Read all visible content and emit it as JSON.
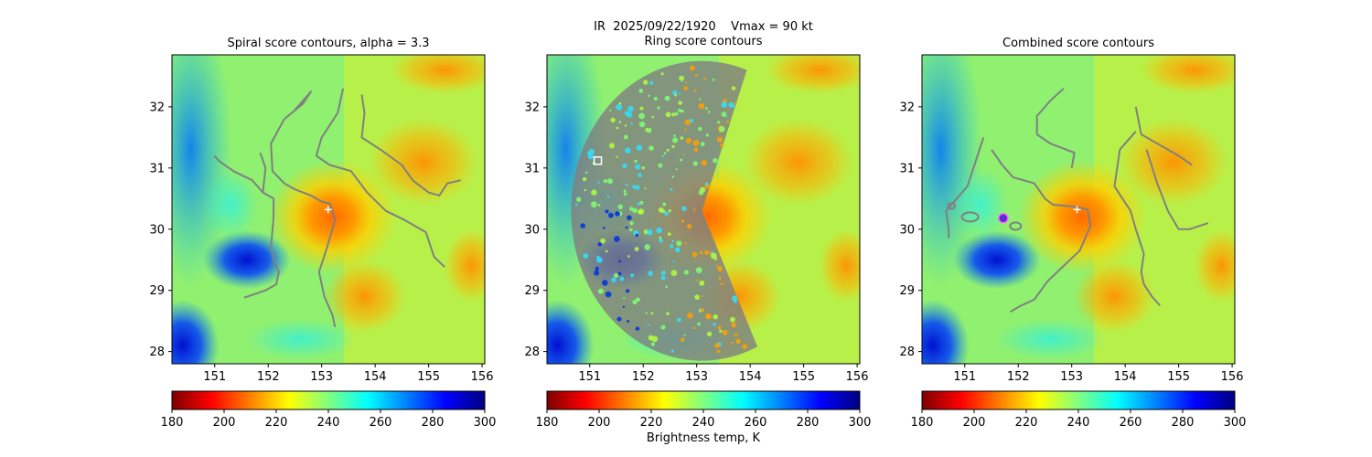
{
  "figure": {
    "suptitle_line1": "IR  2025/09/22/1920    Vmax = 90 kt",
    "suptitle_line2": "Ring score contours",
    "colorbar_label": "Brightness temp, K"
  },
  "colors": {
    "contour": "#808080",
    "marker_center": "#ffffff",
    "marker_combined": "#5a2bd6",
    "colormap_stops": [
      "#7f0000",
      "#ff0000",
      "#ff8000",
      "#ffff00",
      "#80ff80",
      "#00ffff",
      "#0080ff",
      "#0000ff",
      "#00007f"
    ]
  },
  "chart_data": [
    {
      "type": "heatmap",
      "title": "Spiral score contours, alpha =  3.3",
      "xlabel": "",
      "ylabel": "",
      "xlim": [
        150.2,
        156.05
      ],
      "ylim": [
        27.8,
        32.85
      ],
      "xticks": [
        151,
        152,
        153,
        154,
        155,
        156
      ],
      "yticks": [
        28,
        29,
        30,
        31,
        32
      ],
      "colorbar": {
        "range": [
          180,
          300
        ],
        "ticks": [
          180,
          200,
          220,
          240,
          260,
          280,
          300
        ],
        "colormap": "reversed-jet",
        "label": ""
      },
      "center_marker": {
        "lon": 153.12,
        "lat": 30.32,
        "symbol": "+"
      },
      "contours": [
        [
          [
            150.99,
            31.2
          ],
          [
            151.1,
            31.1
          ],
          [
            151.35,
            30.95
          ],
          [
            151.7,
            30.8
          ],
          [
            151.9,
            30.6
          ],
          [
            152.1,
            30.5
          ],
          [
            152.1,
            30.2
          ],
          [
            152.05,
            29.7
          ],
          [
            152.1,
            29.5
          ],
          [
            152.2,
            29.3
          ],
          [
            152.15,
            29.1
          ],
          [
            151.95,
            29.0
          ],
          [
            151.55,
            28.88
          ]
        ],
        [
          [
            151.85,
            31.25
          ],
          [
            151.95,
            31.0
          ],
          [
            151.9,
            30.6
          ]
        ],
        [
          [
            152.5,
            31.95
          ],
          [
            152.8,
            32.25
          ],
          [
            152.65,
            32.05
          ],
          [
            152.3,
            31.8
          ],
          [
            152.05,
            31.4
          ],
          [
            152.08,
            30.95
          ],
          [
            152.3,
            30.75
          ],
          [
            152.5,
            30.65
          ],
          [
            152.8,
            30.55
          ],
          [
            153.0,
            30.45
          ],
          [
            153.15,
            30.42
          ],
          [
            153.25,
            30.15
          ],
          [
            153.1,
            29.7
          ],
          [
            152.95,
            29.3
          ],
          [
            153.05,
            28.9
          ],
          [
            153.2,
            28.6
          ],
          [
            153.25,
            28.4
          ]
        ],
        [
          [
            153.4,
            32.3
          ],
          [
            153.3,
            31.9
          ],
          [
            153.0,
            31.5
          ],
          [
            152.9,
            31.2
          ],
          [
            153.15,
            31.05
          ],
          [
            153.55,
            30.95
          ],
          [
            153.85,
            30.6
          ],
          [
            154.2,
            30.3
          ],
          [
            154.55,
            30.15
          ],
          [
            154.95,
            29.95
          ],
          [
            155.1,
            29.55
          ],
          [
            155.3,
            29.38
          ]
        ],
        [
          [
            153.75,
            32.2
          ],
          [
            153.8,
            31.9
          ],
          [
            153.75,
            31.5
          ],
          [
            154.1,
            31.3
          ],
          [
            154.5,
            31.05
          ],
          [
            154.7,
            30.8
          ],
          [
            155.0,
            30.6
          ],
          [
            155.2,
            30.55
          ],
          [
            155.35,
            30.75
          ],
          [
            155.6,
            30.8
          ]
        ]
      ]
    },
    {
      "type": "heatmap",
      "title": "Ring score contours",
      "xlabel": "",
      "ylabel": "",
      "xlim": [
        150.2,
        156.05
      ],
      "ylim": [
        27.8,
        32.85
      ],
      "xticks": [
        151,
        152,
        153,
        154,
        155,
        156
      ],
      "yticks": [
        28,
        29,
        30,
        31,
        32
      ],
      "colorbar": {
        "range": [
          180,
          300
        ],
        "ticks": [
          180,
          200,
          220,
          240,
          260,
          280,
          300
        ],
        "colormap": "reversed-jet",
        "label": "Brightness temp, K"
      },
      "ring_marker": {
        "lon": 151.15,
        "lat": 31.12,
        "symbol": "square"
      },
      "ring_region": {
        "center": [
          153.1,
          30.3
        ],
        "radius_deg": 2.45,
        "from_angle_deg": 70,
        "to_angle_deg": 295
      }
    },
    {
      "type": "heatmap",
      "title": "Combined score contours",
      "xlabel": "",
      "ylabel": "",
      "xlim": [
        150.2,
        156.05
      ],
      "ylim": [
        27.8,
        32.85
      ],
      "xticks": [
        151,
        152,
        153,
        154,
        155,
        156
      ],
      "yticks": [
        28,
        29,
        30,
        31,
        32
      ],
      "colorbar": {
        "range": [
          180,
          300
        ],
        "ticks": [
          180,
          200,
          220,
          240,
          260,
          280,
          300
        ],
        "colormap": "reversed-jet",
        "label": ""
      },
      "center_marker": {
        "lon": 153.1,
        "lat": 30.32,
        "symbol": "+"
      },
      "combined_marker": {
        "lon": 151.72,
        "lat": 30.18,
        "symbol": "circle"
      },
      "contours": [
        [
          [
            151.35,
            31.5
          ],
          [
            151.2,
            31.1
          ],
          [
            151.05,
            30.7
          ],
          [
            150.85,
            30.5
          ],
          [
            150.65,
            30.3
          ],
          [
            150.7,
            30.0
          ],
          [
            150.7,
            29.85
          ]
        ],
        [
          [
            151.5,
            31.3
          ],
          [
            151.7,
            31.05
          ],
          [
            151.9,
            30.85
          ],
          [
            152.3,
            30.75
          ],
          [
            152.5,
            30.5
          ],
          [
            152.65,
            30.4
          ],
          [
            153.05,
            30.37
          ],
          [
            153.3,
            30.32
          ],
          [
            153.35,
            30.05
          ],
          [
            153.15,
            29.65
          ],
          [
            152.85,
            29.4
          ],
          [
            152.55,
            29.15
          ],
          [
            152.3,
            28.85
          ],
          [
            152.05,
            28.75
          ],
          [
            151.85,
            28.65
          ]
        ],
        [
          [
            153.0,
            31.0
          ],
          [
            153.05,
            31.25
          ],
          [
            152.6,
            31.4
          ],
          [
            152.35,
            31.55
          ],
          [
            152.35,
            31.85
          ],
          [
            152.6,
            32.1
          ],
          [
            152.85,
            32.3
          ]
        ],
        [
          [
            154.2,
            31.6
          ],
          [
            153.9,
            31.3
          ],
          [
            153.8,
            30.7
          ],
          [
            153.95,
            30.5
          ],
          [
            154.1,
            30.3
          ],
          [
            154.2,
            30.0
          ],
          [
            154.35,
            29.6
          ],
          [
            154.3,
            29.3
          ],
          [
            154.35,
            29.1
          ],
          [
            154.5,
            28.9
          ],
          [
            154.65,
            28.75
          ]
        ],
        [
          [
            154.2,
            32.0
          ],
          [
            154.3,
            31.55
          ],
          [
            154.7,
            31.35
          ],
          [
            155.0,
            31.2
          ],
          [
            155.25,
            31.05
          ]
        ],
        [
          [
            154.4,
            31.3
          ],
          [
            154.6,
            30.75
          ],
          [
            154.8,
            30.3
          ],
          [
            155.0,
            30.0
          ],
          [
            155.2,
            30.0
          ],
          [
            155.55,
            30.1
          ]
        ]
      ]
    }
  ]
}
